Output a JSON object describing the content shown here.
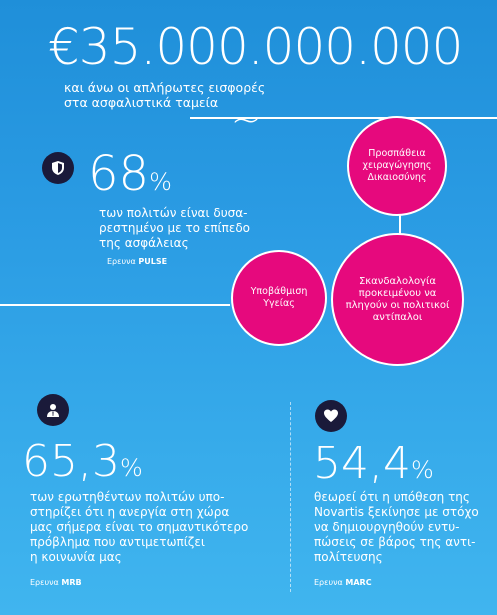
{
  "hero": {
    "amount": "€35.000.000.000",
    "desc_line1": "και άνω οι απλήρωτες εισφορές",
    "desc_line2": "στα ασφαλιστικά ταμεία"
  },
  "stat1": {
    "number": "68",
    "symbol": "%",
    "text_lines": [
      "των πολιτών είναι δυσα-",
      "ρεστημένο με το επίπεδο",
      "της ασφάλειας"
    ],
    "source_prefix": "Ερευνα",
    "source_name": "PULSE",
    "icon": "shield-icon"
  },
  "circles": {
    "c1": "Προσπάθεια χειραγώγησης Δικαιοσύνης",
    "c2": "Υποβάθμιση Υγείας",
    "c3": "Σκανδαλολογία προκειμένου να πληγούν οι πολιτικοί αντίπαλοι"
  },
  "stat2": {
    "number": "65,3",
    "symbol": "%",
    "text_lines": [
      "των ερωτηθέντων πολιτών υπο-",
      "στηρίζει ότι η ανεργία στη χώρα",
      "μας σήμερα είναι το σημαντικότερο",
      "πρόβλημα που αντιμετωπίζει",
      "η κοινωνία μας"
    ],
    "source_prefix": "Ερευνα",
    "source_name": "MRB",
    "icon": "user-icon"
  },
  "stat3": {
    "number": "54,4",
    "symbol": "%",
    "text_lines": [
      "θεωρεί ότι η υπόθεση της",
      "Novartis ξεκίνησε με στόχο",
      "να δημιουργηθούν εντυ-",
      "πώσεις σε βάρος της αντι-",
      "πολίτευσης"
    ],
    "source_prefix": "Ερευνα",
    "source_name": "MARC",
    "icon": "heart-icon"
  },
  "colors": {
    "magenta": "#e6097d",
    "badge": "#1a1a3a"
  }
}
